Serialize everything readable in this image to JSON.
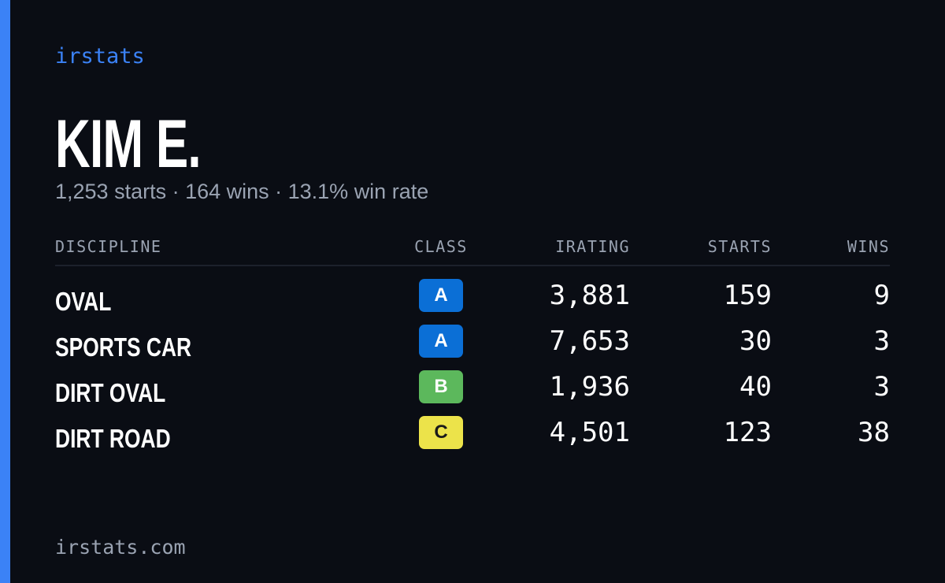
{
  "brand": "irstats",
  "driver": {
    "name": "KIM E.",
    "summary": "1,253 starts · 164 wins · 13.1% win rate"
  },
  "table": {
    "headers": [
      "DISCIPLINE",
      "CLASS",
      "IRATING",
      "STARTS",
      "WINS"
    ],
    "rows": [
      {
        "discipline": "OVAL",
        "class": "A",
        "class_color": "#0b6fd6",
        "class_text_color": "#ffffff",
        "irating": "3,881",
        "starts": "159",
        "wins": "9"
      },
      {
        "discipline": "SPORTS CAR",
        "class": "A",
        "class_color": "#0b6fd6",
        "class_text_color": "#ffffff",
        "irating": "7,653",
        "starts": "30",
        "wins": "3"
      },
      {
        "discipline": "DIRT OVAL",
        "class": "B",
        "class_color": "#5cb85c",
        "class_text_color": "#ffffff",
        "irating": "1,936",
        "starts": "40",
        "wins": "3"
      },
      {
        "discipline": "DIRT ROAD",
        "class": "C",
        "class_color": "#ece34a",
        "class_text_color": "#1a1a1a",
        "irating": "4,501",
        "starts": "123",
        "wins": "38"
      }
    ]
  },
  "footer": "irstats.com"
}
